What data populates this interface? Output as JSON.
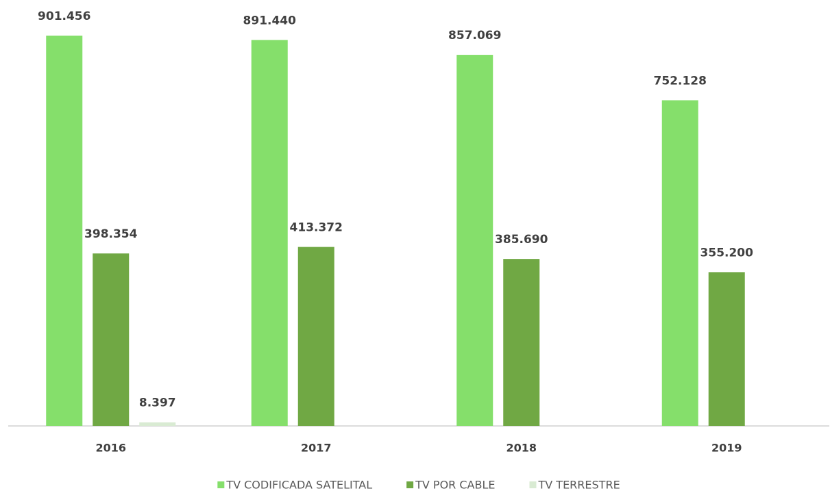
{
  "chart_data": {
    "type": "bar",
    "categories": [
      "2016",
      "2017",
      "2018",
      "2019"
    ],
    "series": [
      {
        "name": "TV CODIFICADA SATELITAL",
        "color": "#85df6b",
        "values": [
          901456,
          891440,
          857069,
          752128
        ],
        "value_labels": [
          "901.456",
          "891.440",
          "857.069",
          "752.128"
        ]
      },
      {
        "name": "TV POR CABLE",
        "color": "#70a844",
        "values": [
          398354,
          413372,
          385690,
          355200
        ],
        "value_labels": [
          "398.354",
          "413.372",
          "385.690",
          "355.200"
        ]
      },
      {
        "name": "TV TERRESTRE",
        "color": "#d9ebd3",
        "values": [
          8397,
          null,
          null,
          null
        ],
        "value_labels": [
          "8.397",
          null,
          null,
          null
        ]
      }
    ],
    "legend": "bottom"
  }
}
